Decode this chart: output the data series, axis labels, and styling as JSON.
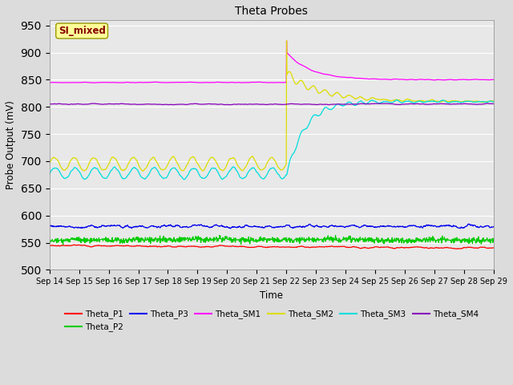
{
  "title": "Theta Probes",
  "xlabel": "Time",
  "ylabel": "Probe Output (mV)",
  "ylim": [
    500,
    960
  ],
  "xlim": [
    0,
    15
  ],
  "yticks": [
    500,
    550,
    600,
    650,
    700,
    750,
    800,
    850,
    900,
    950
  ],
  "xtick_labels": [
    "Sep 14",
    "Sep 15",
    "Sep 16",
    "Sep 17",
    "Sep 18",
    "Sep 19",
    "Sep 20",
    "Sep 21",
    "Sep 22",
    "Sep 23",
    "Sep 24",
    "Sep 25",
    "Sep 26",
    "Sep 27",
    "Sep 28",
    "Sep 29"
  ],
  "annotation_text": "SI_mixed",
  "annotation_box_color": "#FFFF99",
  "annotation_text_color": "#880000",
  "background_color": "#E8E8E8",
  "fig_background": "#DCDCDC",
  "legend_entries": [
    "Theta_P1",
    "Theta_P2",
    "Theta_P3",
    "Theta_SM1",
    "Theta_SM2",
    "Theta_SM3",
    "Theta_SM4"
  ],
  "colors": {
    "Theta_P1": "#FF0000",
    "Theta_P2": "#00CC00",
    "Theta_P3": "#0000EE",
    "Theta_SM1": "#FF00FF",
    "Theta_SM2": "#DDDD00",
    "Theta_SM3": "#00DDDD",
    "Theta_SM4": "#8800BB"
  },
  "n_points": 1500,
  "spike_day": 8.0,
  "transition_day": 8.0
}
